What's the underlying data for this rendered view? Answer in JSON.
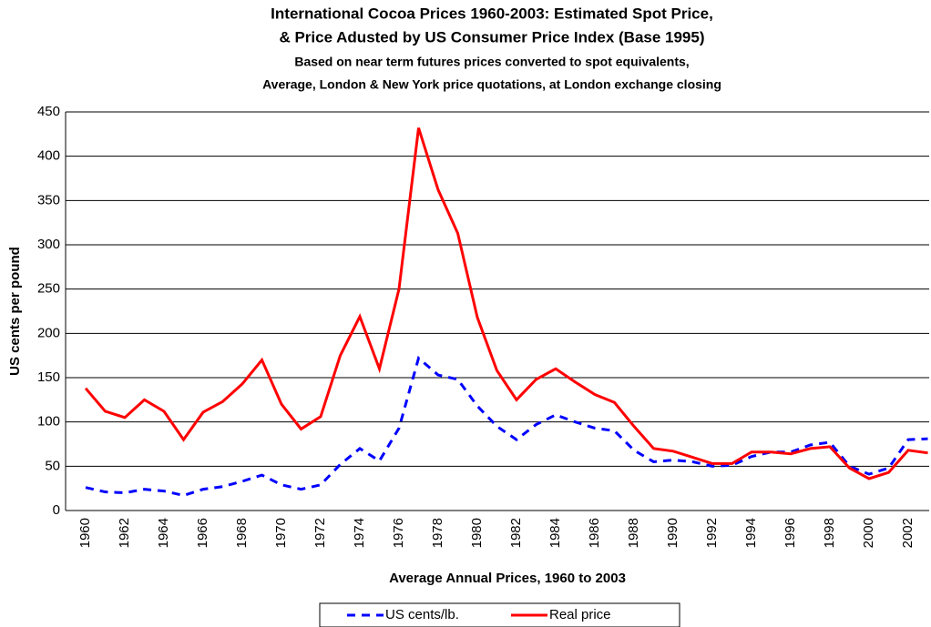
{
  "chart_data": {
    "type": "line",
    "title": [
      "International Cocoa Prices 1960-2003: Estimated Spot Price,",
      "& Price Adusted by US Consumer Price Index (Base 1995)"
    ],
    "subtitle": [
      "Based on near term futures prices converted to spot equivalents,",
      "Average, London & New York price quotations, at London exchange closing"
    ],
    "x_label": "Average Annual Prices, 1960 to 2003",
    "y_label": "US cents per pound",
    "categories": [
      "1960",
      null,
      "1962",
      null,
      "1964",
      null,
      "1966",
      null,
      "1968",
      null,
      "1970",
      null,
      "1972",
      null,
      "1974",
      null,
      "1976",
      null,
      "1978",
      null,
      "1980",
      null,
      "1982",
      null,
      "1984",
      null,
      "1986",
      null,
      "1988",
      null,
      "1990",
      null,
      "1992",
      null,
      "1994",
      null,
      "1996",
      null,
      "1998",
      null,
      "2000",
      null,
      "2002",
      null
    ],
    "series": [
      {
        "name": "US cents/lb.",
        "color": "#0000ff",
        "dashed": true,
        "values": [
          26,
          21,
          20,
          24,
          22,
          17,
          24,
          27,
          33,
          40,
          29,
          24,
          29,
          52,
          70,
          56,
          93,
          172,
          153,
          148,
          118,
          95,
          80,
          97,
          108,
          100,
          93,
          90,
          68,
          55,
          57,
          55,
          50,
          51,
          61,
          66,
          66,
          74,
          77,
          50,
          41,
          48,
          80,
          81
        ]
      },
      {
        "name": "Real price",
        "color": "#ff0000",
        "dashed": false,
        "values": [
          138,
          112,
          105,
          125,
          112,
          80,
          111,
          123,
          143,
          170,
          120,
          92,
          106,
          175,
          219,
          160,
          250,
          432,
          362,
          313,
          218,
          158,
          125,
          148,
          160,
          145,
          131,
          122,
          95,
          70,
          67,
          60,
          53,
          53,
          66,
          66,
          64,
          70,
          72,
          48,
          36,
          43,
          68,
          65
        ]
      }
    ],
    "ylim": [
      0,
      450
    ],
    "yticks": [
      0,
      50,
      100,
      150,
      200,
      250,
      300,
      350,
      400,
      450
    ],
    "grid": true,
    "legend": "bottom"
  }
}
